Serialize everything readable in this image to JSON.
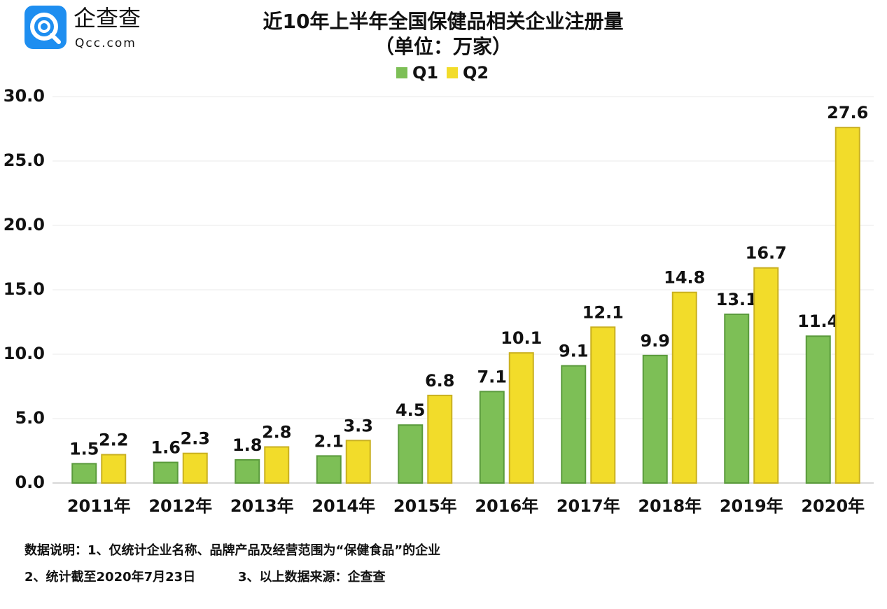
{
  "logo": {
    "name": "企查查",
    "site": "Qcc.com"
  },
  "chart_data": {
    "type": "bar",
    "title": "近10年上半年全国保健品相关企业注册量",
    "subtitle": "（单位：万家）",
    "categories": [
      "2011年",
      "2012年",
      "2013年",
      "2014年",
      "2015年",
      "2016年",
      "2017年",
      "2018年",
      "2019年",
      "2020年"
    ],
    "series": [
      {
        "name": "Q1",
        "color": "#7dbf56",
        "values": [
          1.5,
          1.6,
          1.8,
          2.1,
          4.5,
          7.1,
          9.1,
          9.9,
          13.1,
          11.4
        ]
      },
      {
        "name": "Q2",
        "color": "#f2dc2a",
        "values": [
          2.2,
          2.3,
          2.8,
          3.3,
          6.8,
          10.1,
          12.1,
          14.8,
          16.7,
          27.6
        ]
      }
    ],
    "ylim": [
      0,
      30
    ],
    "yticks": [
      {
        "value": 0,
        "label": "0.0"
      },
      {
        "value": 5,
        "label": "5.0"
      },
      {
        "value": 10,
        "label": "10.0"
      },
      {
        "value": 15,
        "label": "15.0"
      },
      {
        "value": 20,
        "label": "20.0"
      },
      {
        "value": 25,
        "label": "25.0"
      },
      {
        "value": 30,
        "label": "30.0"
      }
    ],
    "grid": true,
    "legend": "top"
  },
  "notes": [
    "数据说明：1、仅统计企业名称、品牌产品及经营范围为“保健食品”的企业",
    "2、统计截至2020年7月23日",
    "3、以上数据来源：企查查"
  ]
}
